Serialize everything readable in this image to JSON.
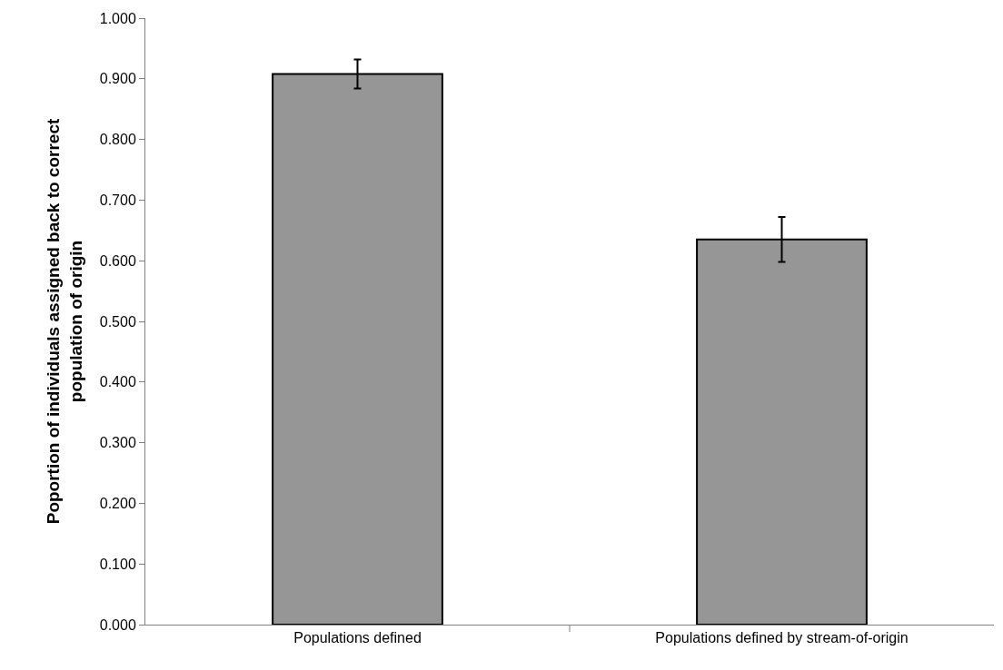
{
  "chart_data": {
    "type": "bar",
    "ylabel": "Poportion of individuals assigned back to correct\npopulation of origin",
    "categories": [
      "Populations defined",
      "Populations defined by stream-of-origin"
    ],
    "values": [
      0.908,
      0.635
    ],
    "errors": [
      0.024,
      0.037
    ],
    "color": "#969696",
    "ylim": [
      0,
      1
    ],
    "yticks": [
      {
        "value": 0,
        "label": "0.000"
      },
      {
        "value": 0.1,
        "label": "0.100"
      },
      {
        "value": 0.2,
        "label": "0.200"
      },
      {
        "value": 0.3,
        "label": "0.300"
      },
      {
        "value": 0.4,
        "label": "0.400"
      },
      {
        "value": 0.5,
        "label": "0.500"
      },
      {
        "value": 0.6,
        "label": "0.600"
      },
      {
        "value": 0.7,
        "label": "0.700"
      },
      {
        "value": 0.8,
        "label": "0.800"
      },
      {
        "value": 0.9,
        "label": "0.900"
      },
      {
        "value": 1,
        "label": "1.000"
      }
    ],
    "grid": false
  }
}
